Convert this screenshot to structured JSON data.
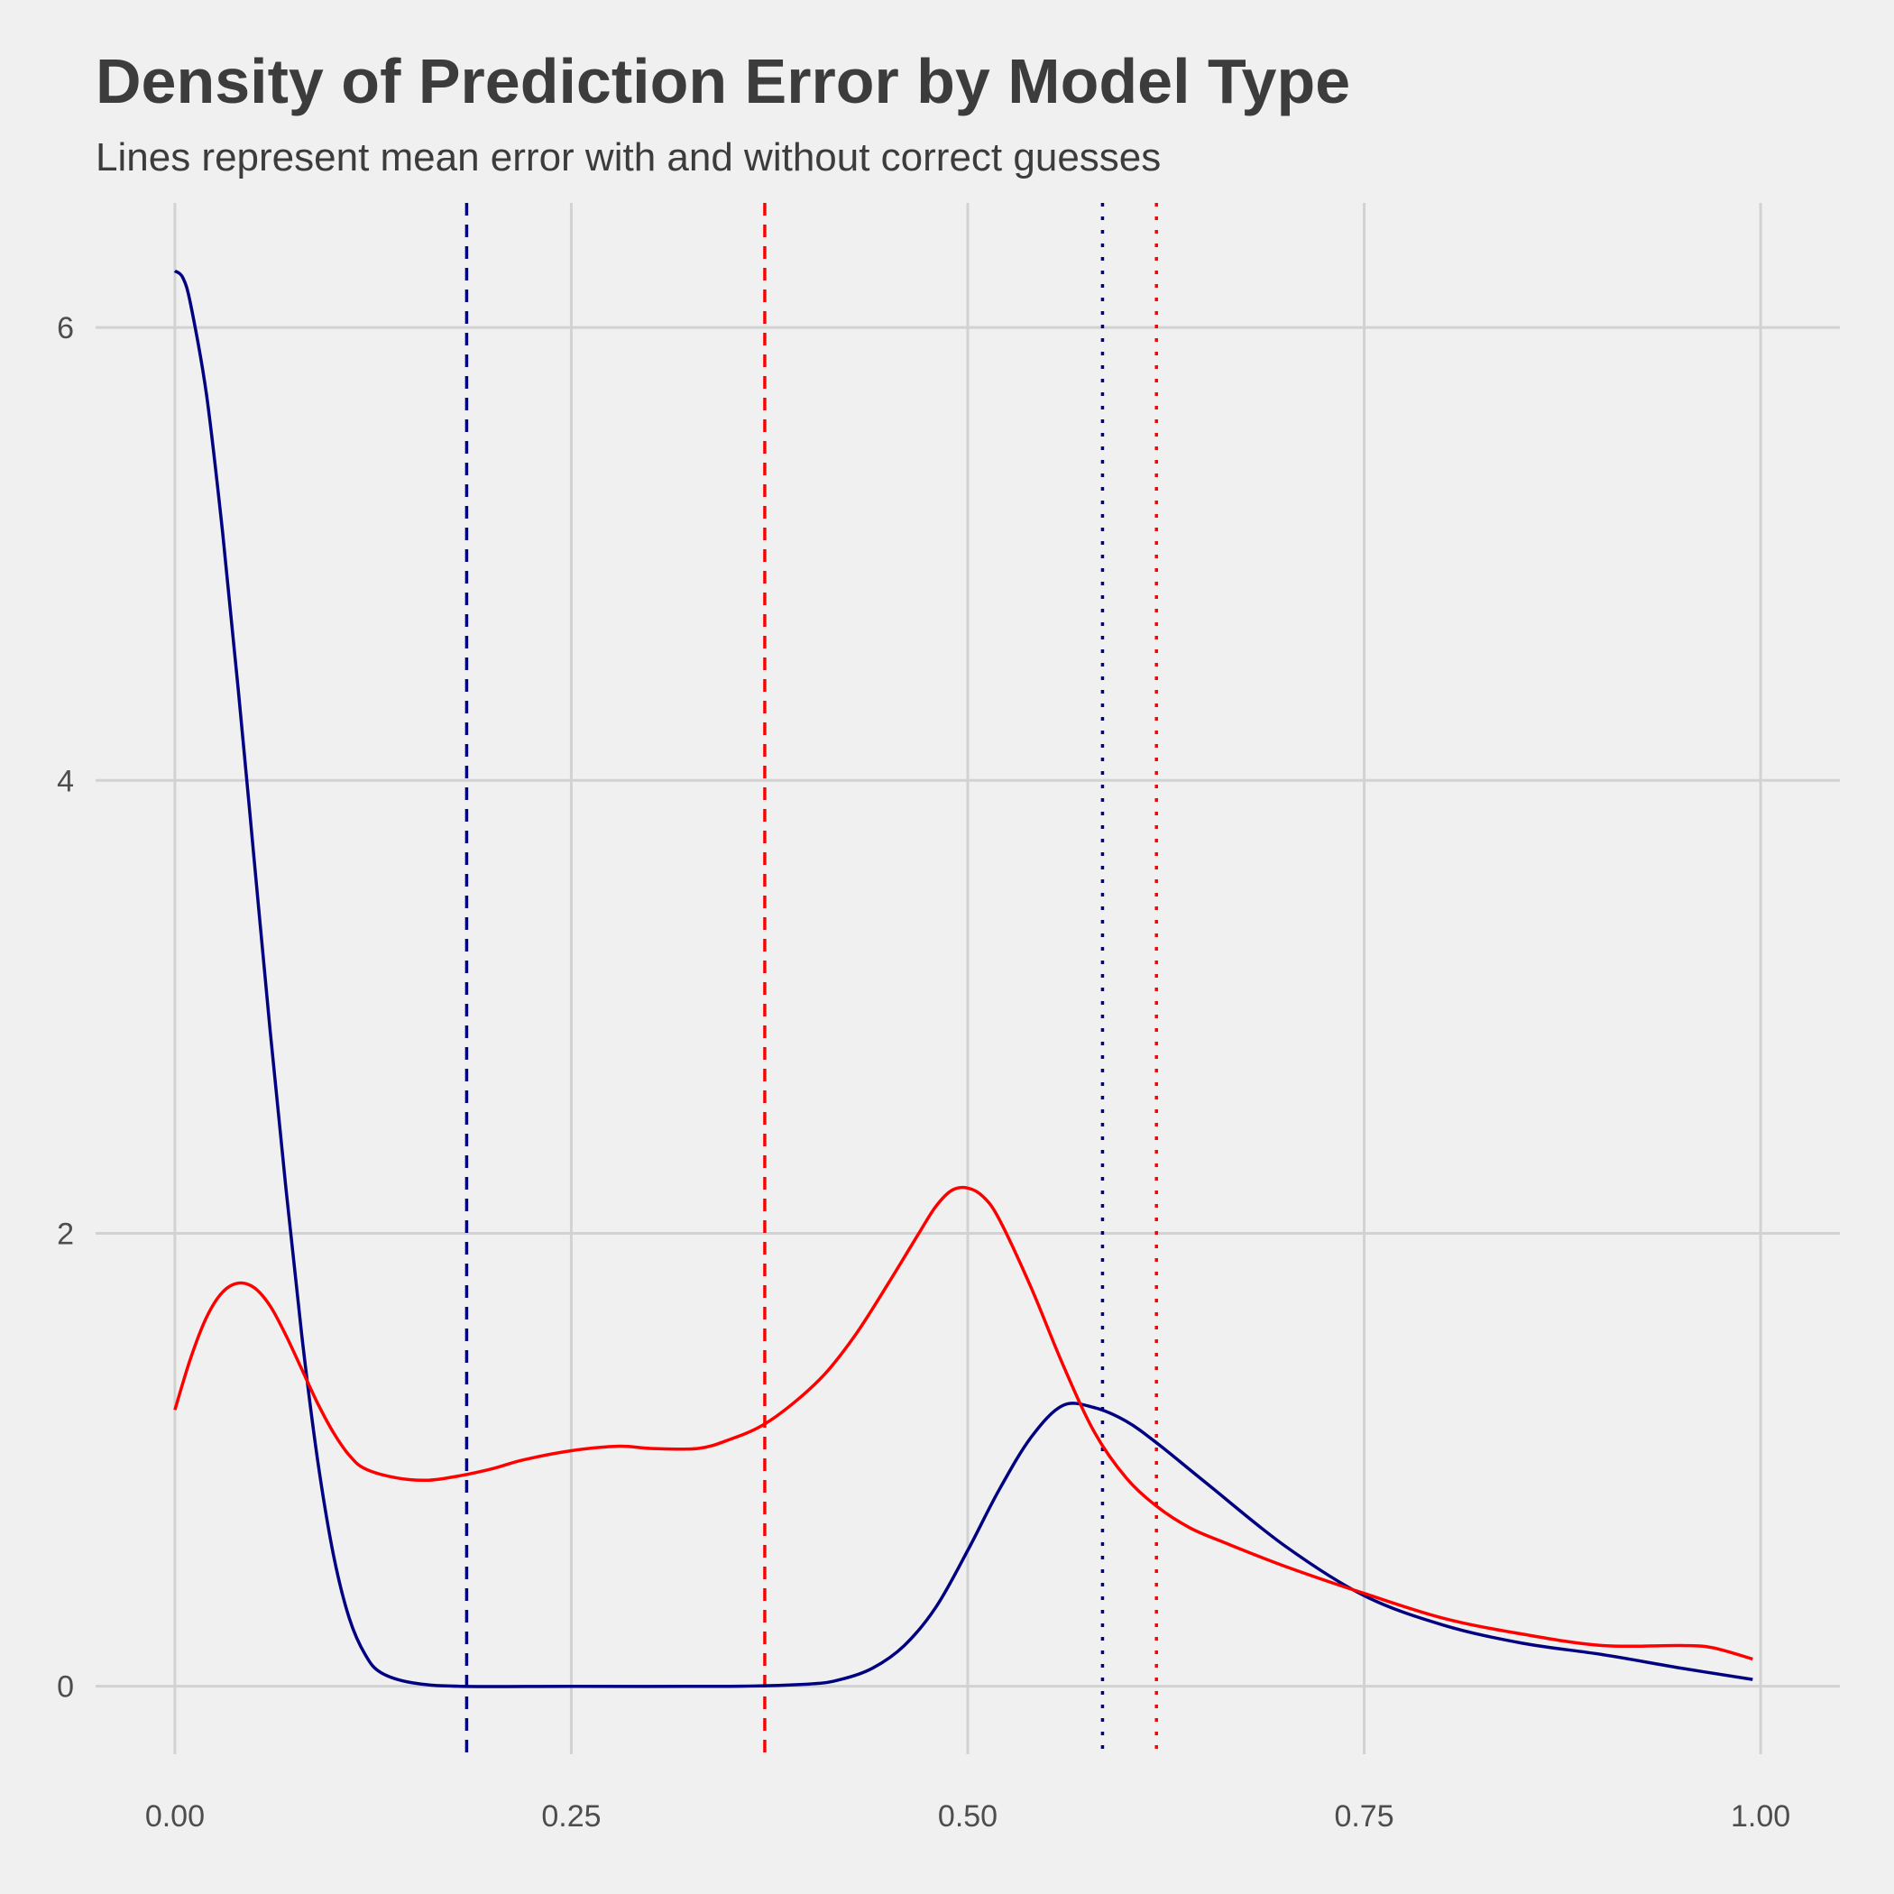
{
  "chart_data": {
    "type": "line",
    "title": "Density of Prediction Error by Model Type",
    "subtitle": "Lines represent mean error with and without correct guesses",
    "xlabel": "",
    "ylabel": "",
    "xlim": [
      -0.05,
      1.05
    ],
    "ylim": [
      -0.3,
      6.55
    ],
    "x_ticks": [
      0.0,
      0.25,
      0.5,
      0.75,
      1.0
    ],
    "x_tick_labels": [
      "0.00",
      "0.25",
      "0.50",
      "0.75",
      "1.00"
    ],
    "y_ticks": [
      0,
      2,
      4,
      6
    ],
    "y_tick_labels": [
      "0",
      "2",
      "4",
      "6"
    ],
    "grid": true,
    "legend": "none",
    "series": [
      {
        "color": "#000080",
        "points": [
          [
            0.0,
            6.25
          ],
          [
            0.005,
            6.22
          ],
          [
            0.01,
            6.1
          ],
          [
            0.02,
            5.7
          ],
          [
            0.03,
            5.1
          ],
          [
            0.04,
            4.4
          ],
          [
            0.05,
            3.65
          ],
          [
            0.06,
            2.9
          ],
          [
            0.07,
            2.2
          ],
          [
            0.08,
            1.55
          ],
          [
            0.09,
            1.0
          ],
          [
            0.1,
            0.58
          ],
          [
            0.11,
            0.3
          ],
          [
            0.12,
            0.14
          ],
          [
            0.13,
            0.06
          ],
          [
            0.15,
            0.015
          ],
          [
            0.18,
            0.0
          ],
          [
            0.25,
            0.0
          ],
          [
            0.35,
            0.0
          ],
          [
            0.4,
            0.01
          ],
          [
            0.42,
            0.03
          ],
          [
            0.44,
            0.08
          ],
          [
            0.46,
            0.18
          ],
          [
            0.48,
            0.35
          ],
          [
            0.5,
            0.6
          ],
          [
            0.52,
            0.87
          ],
          [
            0.54,
            1.1
          ],
          [
            0.56,
            1.24
          ],
          [
            0.58,
            1.23
          ],
          [
            0.6,
            1.17
          ],
          [
            0.62,
            1.07
          ],
          [
            0.65,
            0.9
          ],
          [
            0.7,
            0.62
          ],
          [
            0.75,
            0.4
          ],
          [
            0.8,
            0.27
          ],
          [
            0.85,
            0.19
          ],
          [
            0.9,
            0.14
          ],
          [
            0.95,
            0.08
          ],
          [
            0.995,
            0.03
          ]
        ]
      },
      {
        "color": "#ff0000",
        "points": [
          [
            0.0,
            1.22
          ],
          [
            0.01,
            1.45
          ],
          [
            0.02,
            1.63
          ],
          [
            0.03,
            1.74
          ],
          [
            0.04,
            1.78
          ],
          [
            0.05,
            1.76
          ],
          [
            0.06,
            1.68
          ],
          [
            0.07,
            1.55
          ],
          [
            0.08,
            1.4
          ],
          [
            0.09,
            1.25
          ],
          [
            0.1,
            1.12
          ],
          [
            0.11,
            1.02
          ],
          [
            0.12,
            0.96
          ],
          [
            0.14,
            0.92
          ],
          [
            0.16,
            0.91
          ],
          [
            0.18,
            0.93
          ],
          [
            0.2,
            0.96
          ],
          [
            0.22,
            1.0
          ],
          [
            0.25,
            1.04
          ],
          [
            0.28,
            1.06
          ],
          [
            0.3,
            1.05
          ],
          [
            0.33,
            1.05
          ],
          [
            0.35,
            1.09
          ],
          [
            0.37,
            1.15
          ],
          [
            0.39,
            1.25
          ],
          [
            0.41,
            1.38
          ],
          [
            0.43,
            1.56
          ],
          [
            0.45,
            1.78
          ],
          [
            0.47,
            2.01
          ],
          [
            0.48,
            2.12
          ],
          [
            0.49,
            2.19
          ],
          [
            0.5,
            2.2
          ],
          [
            0.51,
            2.16
          ],
          [
            0.52,
            2.06
          ],
          [
            0.54,
            1.76
          ],
          [
            0.56,
            1.42
          ],
          [
            0.58,
            1.12
          ],
          [
            0.6,
            0.92
          ],
          [
            0.62,
            0.79
          ],
          [
            0.64,
            0.7
          ],
          [
            0.66,
            0.64
          ],
          [
            0.7,
            0.53
          ],
          [
            0.75,
            0.41
          ],
          [
            0.8,
            0.3
          ],
          [
            0.85,
            0.23
          ],
          [
            0.9,
            0.18
          ],
          [
            0.95,
            0.18
          ],
          [
            0.97,
            0.17
          ],
          [
            0.995,
            0.12
          ]
        ]
      }
    ],
    "vlines": [
      {
        "x": 0.184,
        "color": "#000080",
        "style": "dashed"
      },
      {
        "x": 0.372,
        "color": "#ff0000",
        "style": "dashed"
      },
      {
        "x": 0.585,
        "color": "#000080",
        "style": "dotted"
      },
      {
        "x": 0.619,
        "color": "#ff0000",
        "style": "dotted"
      }
    ],
    "colors": {
      "background": "#f0f0f0",
      "grid": "#d2d2d2",
      "text": "#3c3c3c"
    }
  }
}
